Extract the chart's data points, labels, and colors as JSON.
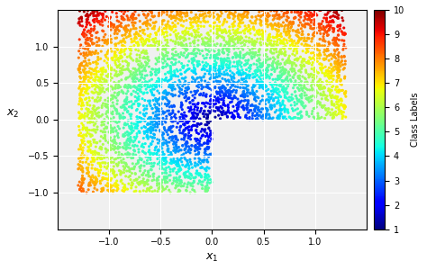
{
  "n_points": 5000,
  "xlim": [
    -1.5,
    1.5
  ],
  "ylim": [
    -1.5,
    1.5
  ],
  "xlabel": "x_1",
  "ylabel": "x_2",
  "colorbar_label": "Class Labels",
  "colorbar_ticks": [
    1,
    2,
    3,
    4,
    5,
    6,
    7,
    8,
    9,
    10
  ],
  "clim": [
    1,
    10
  ],
  "cmap": "jet",
  "marker_size": 5,
  "grid": true,
  "background_color": "#f0f0f0",
  "seed": 42,
  "n_classes": 10
}
